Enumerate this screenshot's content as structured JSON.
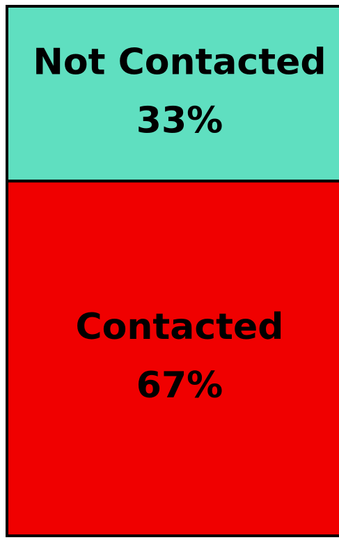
{
  "chart_data": {
    "type": "stacked_bar",
    "series": [
      {
        "name": "Contacted",
        "color": "#f00000",
        "values": [
          67
        ],
        "value_labels": [
          "67%"
        ]
      },
      {
        "name": "Not Contacted",
        "color": "#5fdfc0",
        "values": [
          33
        ],
        "value_labels": [
          "33%"
        ]
      }
    ]
  }
}
